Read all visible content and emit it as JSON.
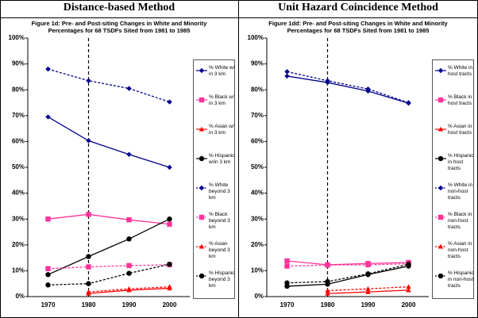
{
  "chart_data": [
    {
      "type": "line",
      "heading": "Distance-based Method",
      "title": "Figure 1d: Pre- and Post-siting Changes in White and Minority Percentages for 68 TSDFs Sited from 1981 to 1985",
      "categories": [
        "1970",
        "1980",
        "1990",
        "2000"
      ],
      "ylim": [
        0,
        100
      ],
      "yticks": [
        {
          "value": 0,
          "label": "0%"
        },
        {
          "value": 10,
          "label": "10%"
        },
        {
          "value": 20,
          "label": "20%"
        },
        {
          "value": 30,
          "label": "30%"
        },
        {
          "value": 40,
          "label": "40%"
        },
        {
          "value": 50,
          "label": "50%"
        },
        {
          "value": 60,
          "label": "60%"
        },
        {
          "value": 70,
          "label": "70%"
        },
        {
          "value": 80,
          "label": "80%"
        },
        {
          "value": 90,
          "label": "90%"
        },
        {
          "value": 100,
          "label": "100%"
        }
      ],
      "grid": false,
      "legend": "right",
      "series": [
        {
          "name": "% White w/ in 3 km",
          "color": "#00008b",
          "linestyle": "solid",
          "marker": "diamond",
          "values": [
            69.5,
            60.3,
            55,
            50
          ]
        },
        {
          "name": "% Black w/ in 3 km",
          "color": "#ff3399",
          "linestyle": "solid",
          "marker": "square",
          "values": [
            30,
            31.8,
            29.7,
            28
          ]
        },
        {
          "name": "% Asian w/ in 3 km",
          "color": "#ff0000",
          "linestyle": "solid",
          "marker": "triangle",
          "values": [
            null,
            1.2,
            2.5,
            3.2
          ]
        },
        {
          "name": "% Hispanic w/in 3 km",
          "color": "#000000",
          "linestyle": "solid",
          "marker": "circle",
          "values": [
            8.5,
            15.5,
            22.3,
            30
          ]
        },
        {
          "name": "% White beyond 3 km",
          "color": "#00008b",
          "linestyle": "dashed",
          "marker": "diamond",
          "values": [
            88,
            83.5,
            80.5,
            75.3
          ]
        },
        {
          "name": "% Black beyond 3 km",
          "color": "#ff3399",
          "linestyle": "dashed",
          "marker": "square",
          "values": [
            10.8,
            11.5,
            12,
            12.3
          ]
        },
        {
          "name": "% Asian beyond 3 km",
          "color": "#ff0000",
          "linestyle": "dashed",
          "marker": "triangle",
          "values": [
            null,
            1.8,
            3,
            3.8
          ]
        },
        {
          "name": "% Hispanic beyond 3 km",
          "color": "#000000",
          "linestyle": "dashed",
          "marker": "circle",
          "values": [
            4.5,
            5,
            9,
            12.5
          ]
        }
      ]
    },
    {
      "type": "line",
      "heading": "Unit Hazard Coincidence Method",
      "title": "Figure 1dd: Pre- and Post-siting Changes in White and Minority Percentages for 68 TSDFs Sited from 1981 to 1985",
      "categories": [
        "1970",
        "1980",
        "1990",
        "2000"
      ],
      "ylim": [
        0,
        100
      ],
      "yticks": [
        {
          "value": 0,
          "label": "0%"
        },
        {
          "value": 10,
          "label": "10%"
        },
        {
          "value": 20,
          "label": "20%"
        },
        {
          "value": 30,
          "label": "30%"
        },
        {
          "value": 40,
          "label": "40%"
        },
        {
          "value": 50,
          "label": "50%"
        },
        {
          "value": 60,
          "label": "60%"
        },
        {
          "value": 70,
          "label": "70%"
        },
        {
          "value": 80,
          "label": "80%"
        },
        {
          "value": 90,
          "label": "90%"
        },
        {
          "value": 100,
          "label": "100%"
        }
      ],
      "grid": false,
      "legend": "right",
      "series": [
        {
          "name": "% White in host tracts",
          "color": "#00008b",
          "linestyle": "solid",
          "marker": "diamond",
          "values": [
            85.3,
            82.8,
            79.5,
            74.8
          ]
        },
        {
          "name": "% Black in host tracts",
          "color": "#ff3399",
          "linestyle": "solid",
          "marker": "square",
          "values": [
            13.8,
            12.3,
            12.8,
            13.2
          ]
        },
        {
          "name": "% Asian in host tracts",
          "color": "#ff0000",
          "linestyle": "solid",
          "marker": "triangle",
          "values": [
            null,
            1.2,
            1.8,
            2.5
          ]
        },
        {
          "name": "% Hispanic in host tracts",
          "color": "#000000",
          "linestyle": "solid",
          "marker": "circle",
          "values": [
            4,
            4.8,
            8.5,
            11.8
          ]
        },
        {
          "name": "% White in non-host tracts",
          "color": "#00008b",
          "linestyle": "dashed",
          "marker": "diamond",
          "values": [
            87,
            83.5,
            80.3,
            75
          ]
        },
        {
          "name": "% Black in non-host tracts",
          "color": "#ff3399",
          "linestyle": "dashed",
          "marker": "square",
          "values": [
            11.8,
            12.2,
            12.3,
            12.7
          ]
        },
        {
          "name": "% Asian in non-host tracts",
          "color": "#ff0000",
          "linestyle": "dashed",
          "marker": "triangle",
          "values": [
            null,
            2.3,
            3,
            3.8
          ]
        },
        {
          "name": "% Hispanic in non-host tracts",
          "color": "#000000",
          "linestyle": "dashed",
          "marker": "circle",
          "values": [
            5.3,
            5.8,
            8.8,
            12.5
          ]
        }
      ]
    }
  ]
}
